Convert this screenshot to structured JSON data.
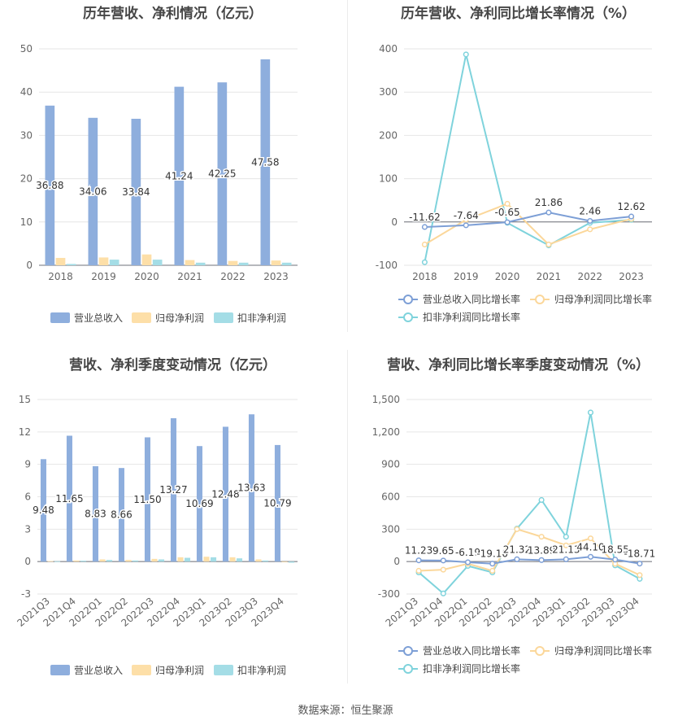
{
  "footer": "数据来源：恒生聚源",
  "colors": {
    "revenue": "#8eaedd",
    "net_profit": "#fddfa8",
    "deducted": "#a4dde6",
    "revenue_line": "#7d9fd6",
    "net_profit_line": "#fbd79a",
    "deducted_line": "#7fd3dc"
  },
  "chart_data": [
    {
      "type": "bar",
      "title": "历年营收、净利情况（亿元）",
      "categories": [
        "2018",
        "2019",
        "2020",
        "2021",
        "2022",
        "2023"
      ],
      "ylim": [
        0,
        50
      ],
      "yticks": [
        "0",
        "10",
        "20",
        "30",
        "40",
        "50"
      ],
      "grid": true,
      "legend": "bottom",
      "series": [
        {
          "name": "营业总收入",
          "values": [
            36.88,
            34.06,
            33.84,
            41.24,
            42.25,
            47.58
          ],
          "labels": [
            "36.88",
            "34.06",
            "33.84",
            "41.24",
            "42.25",
            "47.58"
          ]
        },
        {
          "name": "归母净利润",
          "values": [
            1.7,
            1.8,
            2.5,
            1.2,
            1.0,
            1.1
          ]
        },
        {
          "name": "扣非净利润",
          "values": [
            0.3,
            1.3,
            1.3,
            0.6,
            0.6,
            0.6
          ]
        }
      ]
    },
    {
      "type": "line",
      "title": "历年营收、净利同比增长率情况（%）",
      "categories": [
        "2018",
        "2019",
        "2020",
        "2021",
        "2022",
        "2023"
      ],
      "ylim": [
        -100,
        400
      ],
      "yticks": [
        "-100",
        "0",
        "100",
        "200",
        "300",
        "400"
      ],
      "grid": true,
      "legend": "bottom",
      "series": [
        {
          "name": "营业总收入同比增长率",
          "values": [
            -11.62,
            -7.64,
            -0.65,
            21.86,
            2.46,
            12.62
          ],
          "labels": [
            "-11.62",
            "-7.64",
            "-0.65",
            "21.86",
            "2.46",
            "12.62"
          ]
        },
        {
          "name": "归母净利润同比增长率",
          "values": [
            -52,
            5,
            42,
            -52,
            -17,
            7
          ]
        },
        {
          "name": "扣非净利润同比增长率",
          "values": [
            -93,
            387,
            -2,
            -54,
            -2,
            5
          ]
        }
      ]
    },
    {
      "type": "bar",
      "title": "营收、净利季度变动情况（亿元）",
      "categories": [
        "2021Q3",
        "2021Q4",
        "2022Q1",
        "2022Q2",
        "2022Q3",
        "2022Q4",
        "2023Q1",
        "2023Q2",
        "2023Q3",
        "2023Q4"
      ],
      "ylim": [
        -3,
        15
      ],
      "yticks": [
        "-3",
        "0",
        "3",
        "6",
        "9",
        "12",
        "15"
      ],
      "grid": true,
      "legend": "bottom",
      "series": [
        {
          "name": "营业总收入",
          "values": [
            9.48,
            11.65,
            8.83,
            8.66,
            11.5,
            13.27,
            10.69,
            12.48,
            13.63,
            10.79
          ],
          "labels": [
            "9.48",
            "11.65",
            "8.83",
            "8.66",
            "11.50",
            "13.27",
            "10.69",
            "12.48",
            "13.63",
            "10.79"
          ]
        },
        {
          "name": "归母净利润",
          "values": [
            0.05,
            0.1,
            0.2,
            0.15,
            0.25,
            0.4,
            0.45,
            0.4,
            0.2,
            -0.05
          ]
        },
        {
          "name": "扣非净利润",
          "values": [
            0.03,
            0.08,
            0.15,
            0.1,
            0.2,
            0.35,
            0.4,
            0.3,
            0.1,
            -0.1
          ]
        }
      ]
    },
    {
      "type": "line",
      "title": "营收、净利同比增长率季度变动情况（%）",
      "categories": [
        "2021Q3",
        "2021Q4",
        "2022Q1",
        "2022Q2",
        "2022Q3",
        "2022Q4",
        "2023Q1",
        "2023Q2",
        "2023Q3",
        "2023Q4"
      ],
      "ylim": [
        -300,
        1500
      ],
      "yticks": [
        "-300",
        "0",
        "300",
        "600",
        "900",
        "1,200",
        "1,500"
      ],
      "grid": true,
      "legend": "bottom",
      "series": [
        {
          "name": "营业总收入同比增长率",
          "values": [
            11.23,
            9.65,
            -6.19,
            -19.1,
            21.32,
            13.89,
            21.13,
            44.1,
            18.55,
            -18.71
          ],
          "labels": [
            "11.23",
            "9.65",
            "-6.19",
            "-19.10",
            "21.32",
            "13.89",
            "21.13",
            "44.10",
            "18.55",
            "-18.71"
          ]
        },
        {
          "name": "归母净利润同比增长率",
          "values": [
            -85,
            -75,
            -20,
            -85,
            300,
            230,
            150,
            215,
            -20,
            -125
          ]
        },
        {
          "name": "扣非净利润同比增长率",
          "values": [
            -100,
            -295,
            -40,
            -100,
            305,
            570,
            230,
            1380,
            -35,
            -160
          ]
        }
      ]
    }
  ]
}
